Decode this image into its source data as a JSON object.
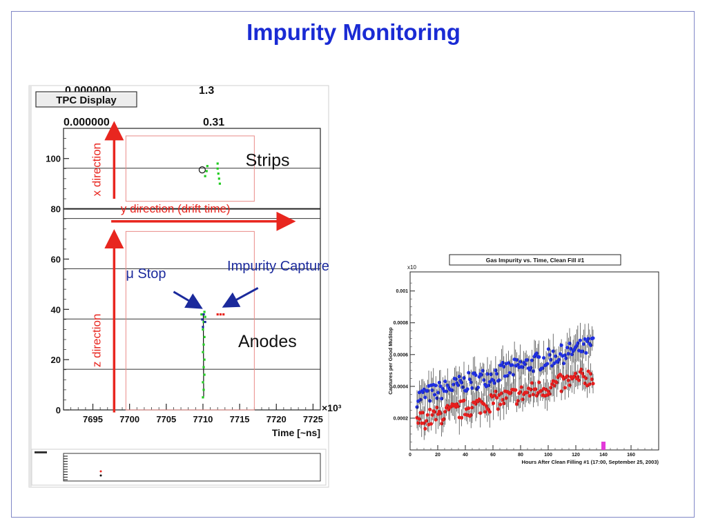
{
  "slide": {
    "title": "Impurity Monitoring"
  },
  "tpc": {
    "button_label": "TPC Display",
    "overlay_top_left": "0.000000",
    "overlay_top_right": "1.3",
    "overlay_top_right_b": "0.31",
    "label_strips": "Strips",
    "label_anodes": "Anodes",
    "label_x_direction": "x direction",
    "label_y_direction": "y direction (drift time)",
    "label_z_direction": "z direction",
    "label_mu_stop": "μ Stop",
    "label_impurity_capture": "Impurity Capture",
    "axis_xlabel": "Time [~ns]",
    "axis_exponent": "×10³",
    "accent_red": "#e8261f",
    "accent_blue": "#1b2a9c"
  },
  "chart_data": [
    {
      "type": "scatter",
      "title": "",
      "xlabel": "Time [~ns]",
      "ylabel": "",
      "x_ticks": [
        7695,
        7700,
        7705,
        7710,
        7715,
        7720,
        7725
      ],
      "y_ticks": [
        0,
        20,
        40,
        60,
        80,
        100
      ],
      "xlim": [
        7691,
        7726
      ],
      "ylim": [
        0,
        112
      ],
      "x_multiplier_label": "×10³",
      "series": [
        {
          "color": "#22cc22",
          "points": [
            [
              7710.0,
              5
            ],
            [
              7710.1,
              8
            ],
            [
              7710.0,
              11
            ],
            [
              7710.2,
              14
            ],
            [
              7710.1,
              17
            ],
            [
              7710.2,
              20
            ],
            [
              7710.0,
              23
            ],
            [
              7710.1,
              26
            ],
            [
              7710.2,
              29
            ],
            [
              7710.0,
              32
            ],
            [
              7710.1,
              35
            ],
            [
              7709.8,
              38
            ],
            [
              7710.3,
              37
            ],
            [
              7710.2,
              39
            ],
            [
              7710.5,
              95
            ],
            [
              7710.6,
              97
            ],
            [
              7710.3,
              93
            ],
            [
              7712.0,
              96
            ],
            [
              7712.1,
              94
            ],
            [
              7712.2,
              92
            ],
            [
              7712.3,
              90
            ],
            [
              7712.0,
              98
            ]
          ]
        },
        {
          "color": "#1b2a9c",
          "points": [
            [
              7710.0,
              33
            ],
            [
              7709.9,
              36
            ],
            [
              7710.3,
              35
            ],
            [
              7710.1,
              38
            ]
          ]
        },
        {
          "color": "#e8261f",
          "points": [
            [
              7712.0,
              38
            ],
            [
              7712.4,
              38
            ],
            [
              7712.8,
              38
            ]
          ]
        }
      ]
    },
    {
      "type": "scatter",
      "title": "Gas Impurity vs. Time, Clean Fill #1",
      "xlabel": "Hours After Clean Filling #1 (17:00, September 25, 2003)",
      "ylabel": "Captures per Good MuStop",
      "y_multiplier_label": "x10",
      "x_ticks": [
        0,
        20,
        40,
        60,
        80,
        100,
        120,
        140,
        160
      ],
      "y_ticks": [
        0.0002,
        0.0004,
        0.0006,
        0.0008,
        0.001
      ],
      "y_tick_labels": [
        "0.0002",
        "0.0004",
        "0.0006",
        "0.0008",
        "0.001"
      ],
      "xlim": [
        0,
        180
      ],
      "ylim": [
        0,
        0.00112
      ],
      "series": [
        {
          "color": "#1f2fe0",
          "trend": {
            "x": [
              5,
              133
            ],
            "y": [
              0.00033,
              0.00066
            ]
          },
          "spread": 6e-05,
          "error": 8e-05
        },
        {
          "color": "#e61e1e",
          "trend": {
            "x": [
              5,
              133
            ],
            "y": [
              0.00018,
              0.00047
            ]
          },
          "spread": 6e-05,
          "error": 8e-05
        },
        {
          "color": "#e23ad9",
          "points": [
            [
              140,
              0.0
            ]
          ]
        }
      ]
    }
  ]
}
